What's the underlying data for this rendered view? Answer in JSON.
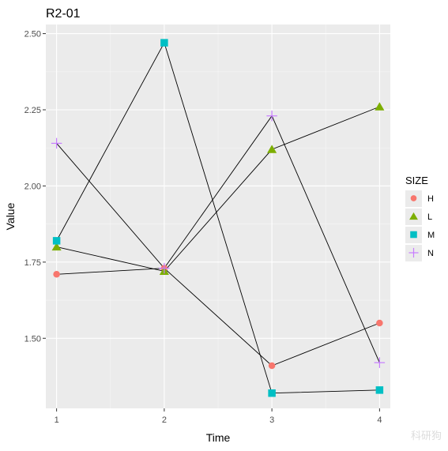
{
  "chart_data": {
    "type": "line",
    "title": "R2-01",
    "xlabel": "Time",
    "ylabel": "Value",
    "x": [
      1,
      2,
      3,
      4
    ],
    "xticks": [
      "1",
      "2",
      "3",
      "4"
    ],
    "ylim": [
      1.27,
      2.53
    ],
    "yticks": [
      "1.50",
      "1.75",
      "2.00",
      "2.25",
      "2.50"
    ],
    "legend": {
      "title": "SIZE",
      "placement": "right"
    },
    "grid": true,
    "series": [
      {
        "name": "H",
        "values": [
          1.71,
          1.73,
          1.41,
          1.55
        ],
        "color": "#F8766D",
        "shape": "circle"
      },
      {
        "name": "L",
        "values": [
          1.8,
          1.72,
          2.12,
          2.26
        ],
        "color": "#7CAE00",
        "shape": "triangle"
      },
      {
        "name": "M",
        "values": [
          1.82,
          2.47,
          1.32,
          1.33
        ],
        "color": "#00BFC4",
        "shape": "square"
      },
      {
        "name": "N",
        "values": [
          2.14,
          1.73,
          2.23,
          1.42
        ],
        "color": "#C77CFF",
        "shape": "plus"
      }
    ]
  },
  "watermark": "科研狗"
}
